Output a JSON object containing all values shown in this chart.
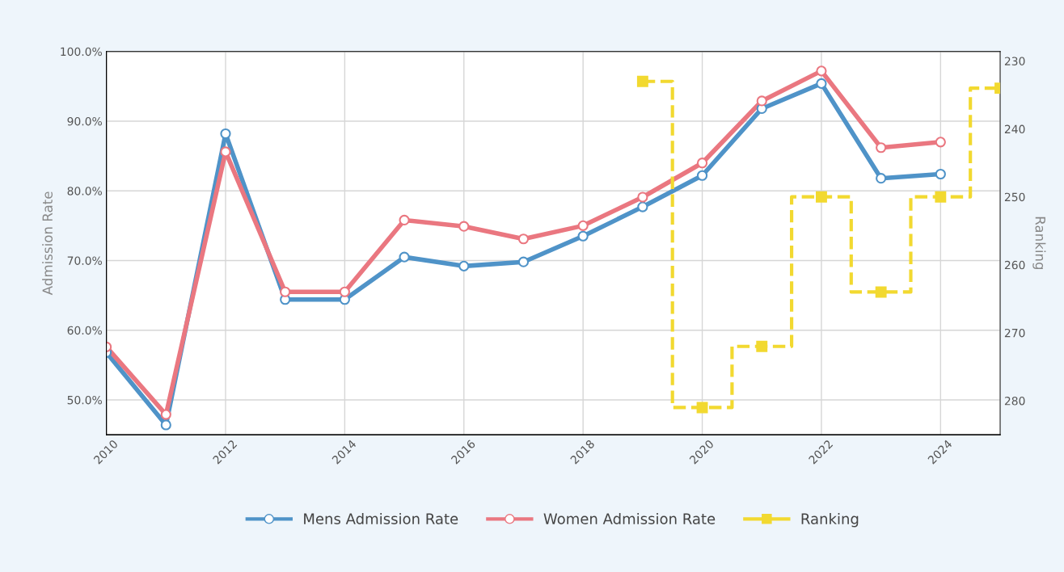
{
  "chart_data": {
    "type": "line",
    "ylabel": "Admission Rate",
    "y2label": "Ranking",
    "x": [
      2010,
      2011,
      2012,
      2013,
      2014,
      2015,
      2016,
      2017,
      2018,
      2019,
      2020,
      2021,
      2022,
      2023,
      2024
    ],
    "xlim": [
      2010,
      2025
    ],
    "xticks": [
      2010,
      2012,
      2014,
      2016,
      2018,
      2020,
      2022,
      2024
    ],
    "ylim": [
      45,
      100
    ],
    "yticks": [
      {
        "value": 50,
        "label": "50.0%"
      },
      {
        "value": 60,
        "label": "60.0%"
      },
      {
        "value": 70,
        "label": "70.0%"
      },
      {
        "value": 80,
        "label": "80.0%"
      },
      {
        "value": 90,
        "label": "90.0%"
      },
      {
        "value": 100,
        "label": "100.0%"
      }
    ],
    "y2lim": [
      285,
      228.6
    ],
    "y2ticks": [
      230,
      240,
      250,
      260,
      270,
      280
    ],
    "grid": true,
    "legend": "bottom",
    "series": [
      {
        "name": "Mens Admission Rate",
        "color": "#4f93c8",
        "marker": "circle",
        "line_style": "solid",
        "values": [
          56.8,
          46.4,
          88.2,
          64.4,
          64.4,
          70.5,
          69.2,
          69.8,
          73.5,
          77.7,
          82.2,
          91.8,
          95.4,
          81.8,
          82.4
        ]
      },
      {
        "name": "Women Admission Rate",
        "color": "#ea7780",
        "marker": "circle",
        "line_style": "solid",
        "values": [
          57.6,
          47.9,
          85.6,
          65.5,
          65.5,
          75.8,
          74.9,
          73.1,
          75.0,
          79.1,
          84.0,
          92.9,
          97.2,
          86.2,
          87.0
        ]
      },
      {
        "name": "Ranking",
        "type": "step",
        "axis": "y2",
        "color": "#f2d930",
        "marker": "square",
        "line_style": "dashed",
        "x": [
          2019,
          2020,
          2021,
          2022,
          2023,
          2024,
          2025
        ],
        "values": [
          233,
          281,
          272,
          250,
          264,
          250,
          234
        ]
      }
    ]
  }
}
